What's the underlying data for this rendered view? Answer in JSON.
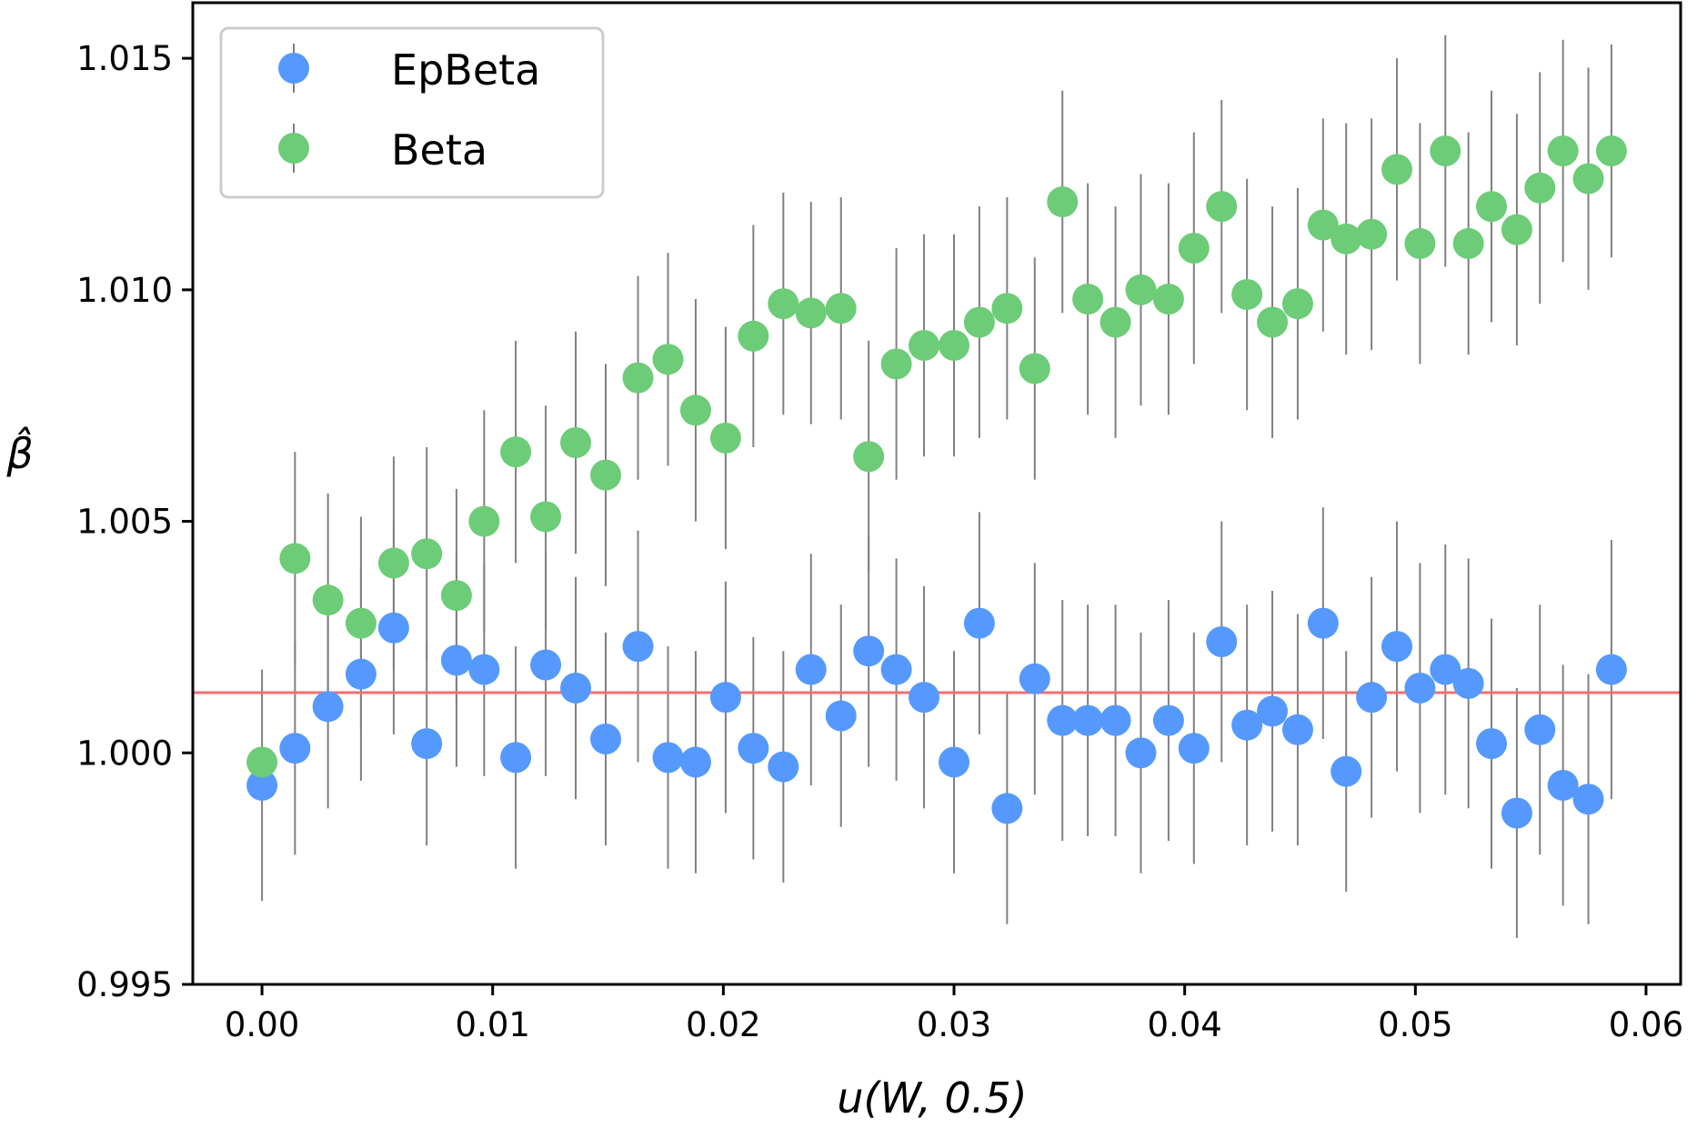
{
  "chart_data": {
    "type": "scatter",
    "xlabel": "u(W, 0.5)",
    "ylabel": "β̂",
    "xlim": [
      -0.003,
      0.0615
    ],
    "ylim": [
      0.995,
      1.0162
    ],
    "xticks": [
      0.0,
      0.01,
      0.02,
      0.03,
      0.04,
      0.05,
      0.06
    ],
    "xtick_labels": [
      "0.00",
      "0.01",
      "0.02",
      "0.03",
      "0.04",
      "0.05",
      "0.06"
    ],
    "yticks": [
      0.995,
      1.0,
      1.005,
      1.01,
      1.015
    ],
    "ytick_labels": [
      "0.995",
      "1.000",
      "1.005",
      "1.010",
      "1.015"
    ],
    "reference_line": {
      "y": 1.0013,
      "color": "#f07070"
    },
    "legend_position": "top-left",
    "x": [
      0.0,
      0.00143,
      0.00286,
      0.00429,
      0.00571,
      0.00714,
      0.00843,
      0.00963,
      0.011,
      0.0123,
      0.0136,
      0.0149,
      0.0163,
      0.0176,
      0.0188,
      0.0201,
      0.0213,
      0.0226,
      0.0238,
      0.0251,
      0.0263,
      0.0275,
      0.0287,
      0.03,
      0.0311,
      0.0323,
      0.0335,
      0.0347,
      0.0358,
      0.037,
      0.0381,
      0.0393,
      0.0404,
      0.0416,
      0.0427,
      0.0438,
      0.0449,
      0.046,
      0.047,
      0.0481,
      0.0492,
      0.0502,
      0.0513,
      0.0523,
      0.0533,
      0.0544,
      0.0554,
      0.0564,
      0.0575,
      0.0585
    ],
    "series": [
      {
        "name": "EpBeta",
        "color": "#5599ff",
        "values": [
          0.9993,
          1.0001,
          1.001,
          1.0017,
          1.0027,
          1.0002,
          1.002,
          1.0018,
          0.9999,
          1.0019,
          1.0014,
          1.0003,
          1.0023,
          0.9999,
          0.9998,
          1.0012,
          1.0001,
          0.9997,
          1.0018,
          1.0008,
          1.0022,
          1.0018,
          1.0012,
          0.9998,
          1.0028,
          0.9988,
          1.0016,
          1.0007,
          1.0007,
          1.0007,
          1.0,
          1.0007,
          1.0001,
          1.0024,
          1.0006,
          1.0009,
          1.0005,
          1.0028,
          0.9996,
          1.0012,
          1.0023,
          1.0014,
          1.0018,
          1.0015,
          1.0002,
          0.9987,
          1.0005,
          0.9993,
          0.999,
          1.0018
        ],
        "errors": [
          0.0025,
          0.0023,
          0.0022,
          0.0023,
          0.0023,
          0.0022,
          0.0023,
          0.0023,
          0.0024,
          0.0024,
          0.0024,
          0.0023,
          0.0025,
          0.0024,
          0.0024,
          0.0025,
          0.0024,
          0.0025,
          0.0025,
          0.0024,
          0.0025,
          0.0024,
          0.0024,
          0.0024,
          0.0024,
          0.0025,
          0.0025,
          0.0026,
          0.0025,
          0.0025,
          0.0026,
          0.0026,
          0.0025,
          0.0026,
          0.0026,
          0.0026,
          0.0025,
          0.0025,
          0.0026,
          0.0026,
          0.0027,
          0.0027,
          0.0027,
          0.0027,
          0.0027,
          0.0027,
          0.0027,
          0.0026,
          0.0027,
          0.0028
        ]
      },
      {
        "name": "Beta",
        "color": "#6ccc77",
        "values": [
          0.9998,
          1.0042,
          1.0033,
          1.0028,
          1.0041,
          1.0043,
          1.0034,
          1.005,
          1.0065,
          1.0051,
          1.0067,
          1.006,
          1.0081,
          1.0085,
          1.0074,
          1.0068,
          1.009,
          1.0097,
          1.0095,
          1.0096,
          1.0064,
          1.0084,
          1.0088,
          1.0088,
          1.0093,
          1.0096,
          1.0083,
          1.0119,
          1.0098,
          1.0093,
          1.01,
          1.0098,
          1.0109,
          1.0118,
          1.0099,
          1.0093,
          1.0097,
          1.0114,
          1.0111,
          1.0112,
          1.0126,
          1.011,
          1.013,
          1.011,
          1.0118,
          1.0113,
          1.0122,
          1.013,
          1.0124,
          1.013
        ],
        "errors": [
          0.0,
          0.0023,
          0.0023,
          0.0023,
          0.0023,
          0.0023,
          0.0023,
          0.0024,
          0.0024,
          0.0024,
          0.0024,
          0.0024,
          0.0022,
          0.0023,
          0.0024,
          0.0024,
          0.0024,
          0.0024,
          0.0024,
          0.0024,
          0.0025,
          0.0025,
          0.0024,
          0.0024,
          0.0025,
          0.0024,
          0.0024,
          0.0024,
          0.0025,
          0.0025,
          0.0025,
          0.0025,
          0.0025,
          0.0023,
          0.0025,
          0.0025,
          0.0025,
          0.0023,
          0.0025,
          0.0025,
          0.0024,
          0.0026,
          0.0025,
          0.0024,
          0.0025,
          0.0025,
          0.0025,
          0.0024,
          0.0024,
          0.0023
        ]
      }
    ]
  }
}
